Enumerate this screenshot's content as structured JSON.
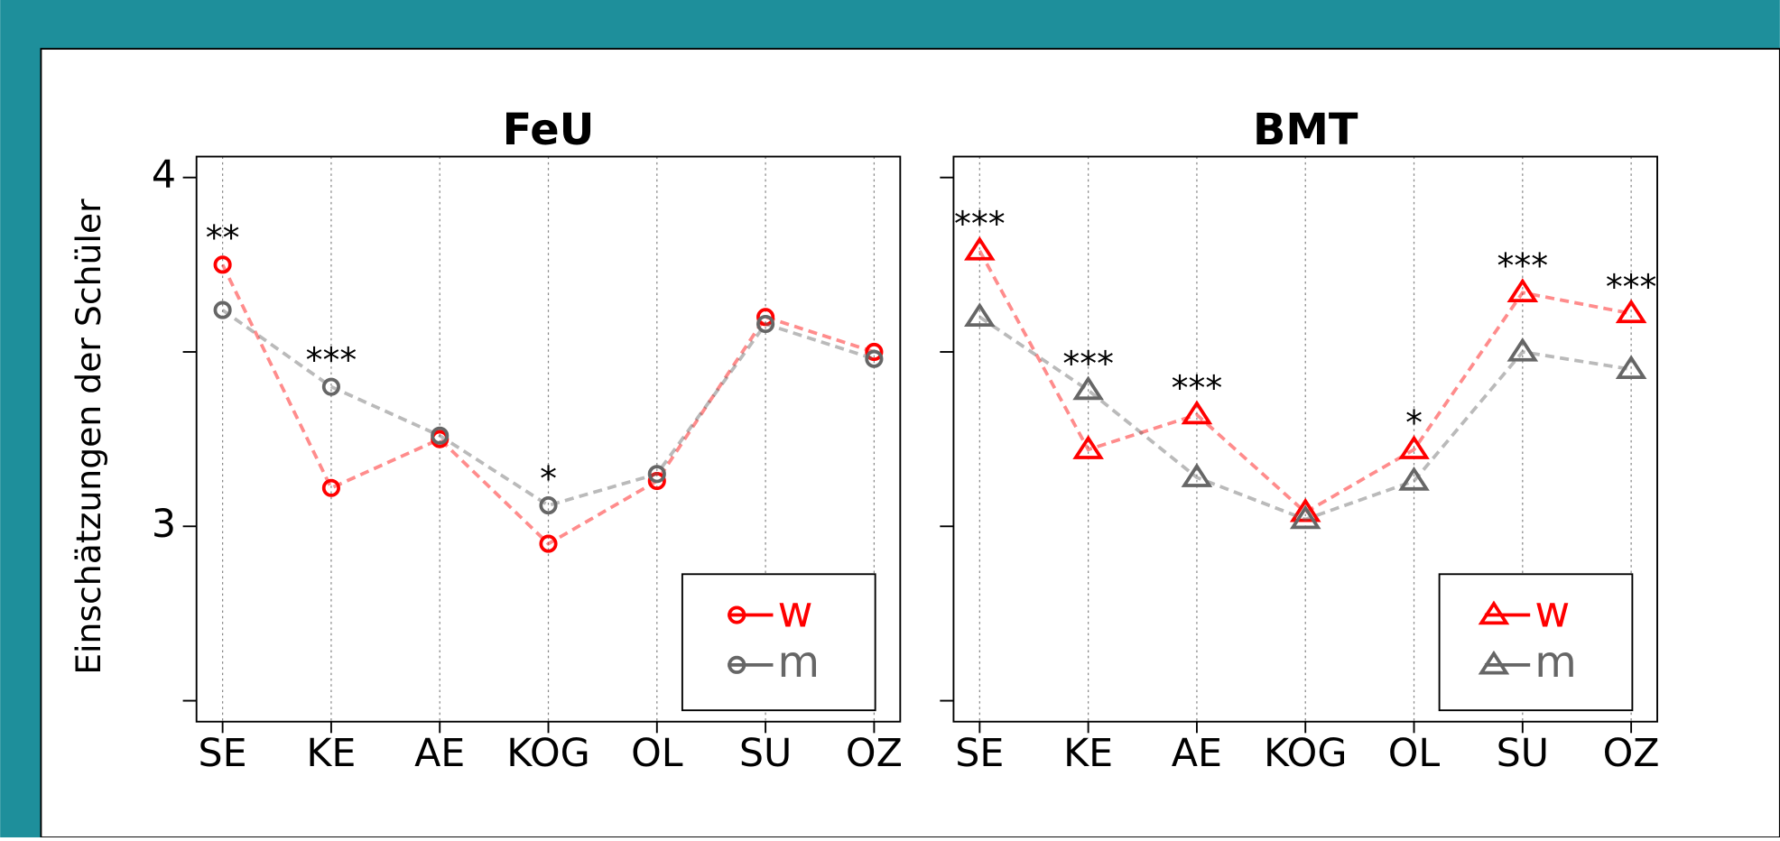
{
  "chart_data": [
    {
      "type": "line",
      "title": "FeU",
      "ylabel": "Einschätzungen der Schüler",
      "marker": "circle",
      "categories": [
        "SE",
        "KE",
        "AE",
        "KOG",
        "OL",
        "SU",
        "OZ"
      ],
      "series": [
        {
          "name": "w",
          "color": "#ff0000",
          "values": [
            3.75,
            3.11,
            3.25,
            2.95,
            3.13,
            3.6,
            3.5
          ]
        },
        {
          "name": "m",
          "color": "#666666",
          "values": [
            3.62,
            3.4,
            3.26,
            3.06,
            3.15,
            3.58,
            3.48
          ]
        }
      ],
      "annotations": [
        "**",
        "***",
        null,
        "*",
        null,
        null,
        null
      ],
      "ylim": [
        2.44,
        4.06
      ],
      "yticks": [
        3,
        4
      ],
      "yminorticks": [
        2.5,
        3.5
      ],
      "grid": true,
      "legend": "lower right"
    },
    {
      "type": "line",
      "title": "BMT",
      "marker": "triangle",
      "categories": [
        "SE",
        "KE",
        "AE",
        "KOG",
        "OL",
        "SU",
        "OZ"
      ],
      "series": [
        {
          "name": "w",
          "color": "#ff0000",
          "values": [
            3.79,
            3.22,
            3.32,
            3.04,
            3.22,
            3.67,
            3.61
          ]
        },
        {
          "name": "m",
          "color": "#666666",
          "values": [
            3.6,
            3.39,
            3.14,
            3.02,
            3.13,
            3.5,
            3.45
          ]
        }
      ],
      "annotations": [
        "***",
        "***",
        "***",
        null,
        "*",
        "***",
        "***"
      ],
      "ylim": [
        2.44,
        4.06
      ],
      "yticks": [],
      "yminorticks": [
        2.5,
        3,
        3.5,
        4
      ],
      "grid": true,
      "legend": "lower right"
    }
  ]
}
